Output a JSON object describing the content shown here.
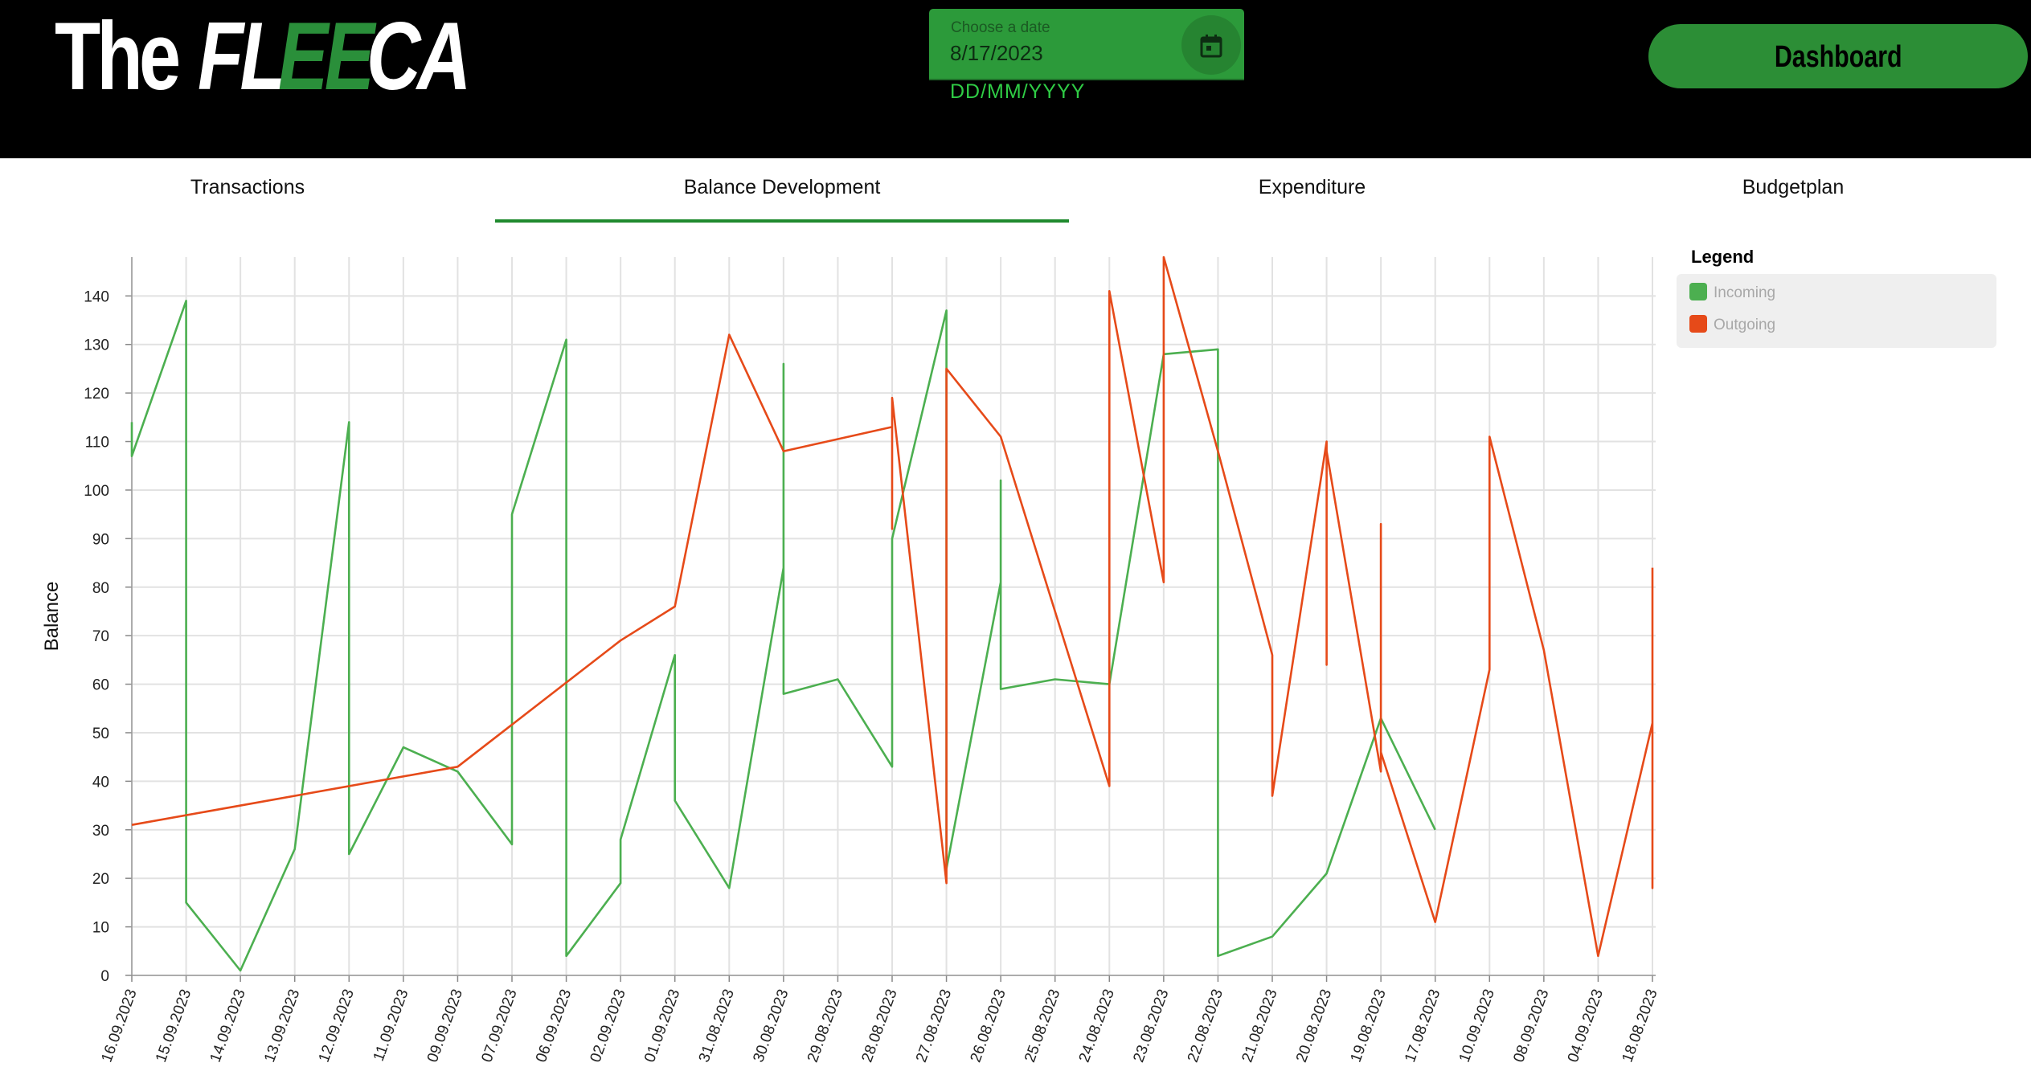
{
  "header": {
    "logo": {
      "part1": "The",
      "part2": "FL",
      "part3": "EE",
      "part4": "CA"
    },
    "date_picker": {
      "label": "Choose a date",
      "value": "8/17/2023",
      "hint": "DD/MM/YYYY"
    },
    "dashboard_button": "Dashboard"
  },
  "tabs": [
    {
      "label": "Transactions",
      "active": false
    },
    {
      "label": "Balance Development",
      "active": true
    },
    {
      "label": "Expenditure",
      "active": false
    },
    {
      "label": "Budgetplan",
      "active": false
    }
  ],
  "legend": {
    "title": "Legend",
    "items": [
      {
        "label": "Incoming",
        "color": "#4caf50"
      },
      {
        "label": "Outgoing",
        "color": "#e64a19"
      }
    ]
  },
  "colors": {
    "accent": "#2c9a3a",
    "header_bg": "#000000",
    "incoming": "#4caf50",
    "outgoing": "#e64a19"
  },
  "chart_data": {
    "type": "line",
    "ylabel": "Balance",
    "xlabel": "",
    "ylim": [
      0,
      148
    ],
    "yticks": [
      0,
      10,
      20,
      30,
      40,
      50,
      60,
      70,
      80,
      90,
      100,
      110,
      120,
      130,
      140
    ],
    "grid": true,
    "legend_position": "right",
    "categories": [
      "16.09.2023",
      "15.09.2023",
      "14.09.2023",
      "13.09.2023",
      "12.09.2023",
      "11.09.2023",
      "09.09.2023",
      "07.09.2023",
      "06.09.2023",
      "02.09.2023",
      "01.09.2023",
      "31.08.2023",
      "30.08.2023",
      "29.08.2023",
      "28.08.2023",
      "27.08.2023",
      "26.08.2023",
      "25.08.2023",
      "24.08.2023",
      "23.08.2023",
      "22.08.2023",
      "21.08.2023",
      "20.08.2023",
      "19.08.2023",
      "17.08.2023",
      "10.09.2023",
      "08.09.2023",
      "04.09.2023",
      "18.08.2023"
    ],
    "series": [
      {
        "name": "Incoming",
        "color": "#4caf50",
        "points": [
          [
            0,
            114
          ],
          [
            0,
            107
          ],
          [
            1,
            139
          ],
          [
            1,
            15
          ],
          [
            2,
            1
          ],
          [
            3,
            26
          ],
          [
            4,
            114
          ],
          [
            4,
            25
          ],
          [
            5,
            47
          ],
          [
            6,
            42
          ],
          [
            7,
            27
          ],
          [
            7,
            95
          ],
          [
            8,
            131
          ],
          [
            8,
            4
          ],
          [
            9,
            19
          ],
          [
            9,
            28
          ],
          [
            10,
            66
          ],
          [
            10,
            36
          ],
          [
            11,
            18
          ],
          [
            12,
            84
          ],
          [
            12,
            126
          ],
          [
            12,
            58
          ],
          [
            13,
            61
          ],
          [
            14,
            43
          ],
          [
            14,
            90
          ],
          [
            15,
            137
          ],
          [
            15,
            22
          ],
          [
            16,
            81
          ],
          [
            16,
            102
          ],
          [
            16,
            59
          ],
          [
            17,
            61
          ],
          [
            18,
            60
          ],
          [
            19,
            128
          ],
          [
            20,
            129
          ],
          [
            20,
            4
          ],
          [
            21,
            8
          ],
          [
            22,
            21
          ],
          [
            23,
            53
          ],
          [
            24,
            30
          ]
        ]
      },
      {
        "name": "Outgoing",
        "color": "#e64a19",
        "points": [
          [
            0,
            31
          ],
          [
            6,
            43
          ],
          [
            9,
            69
          ],
          [
            10,
            76
          ],
          [
            11,
            132
          ],
          [
            12,
            108
          ],
          [
            14,
            113
          ],
          [
            14,
            92
          ],
          [
            14,
            119
          ],
          [
            15,
            19
          ],
          [
            15,
            125
          ],
          [
            16,
            111
          ],
          [
            17,
            75
          ],
          [
            18,
            39
          ],
          [
            18,
            141
          ],
          [
            19,
            81
          ],
          [
            19,
            148
          ],
          [
            20,
            108
          ],
          [
            21,
            66
          ],
          [
            21,
            37
          ],
          [
            22,
            110
          ],
          [
            22,
            64
          ],
          [
            22,
            108
          ],
          [
            23,
            42
          ],
          [
            23,
            93
          ],
          [
            23,
            46
          ],
          [
            24,
            11
          ],
          [
            25,
            63
          ],
          [
            25,
            111
          ],
          [
            26,
            67
          ],
          [
            27,
            4
          ],
          [
            28,
            52
          ],
          [
            28,
            18
          ],
          [
            28,
            84
          ]
        ]
      }
    ]
  }
}
